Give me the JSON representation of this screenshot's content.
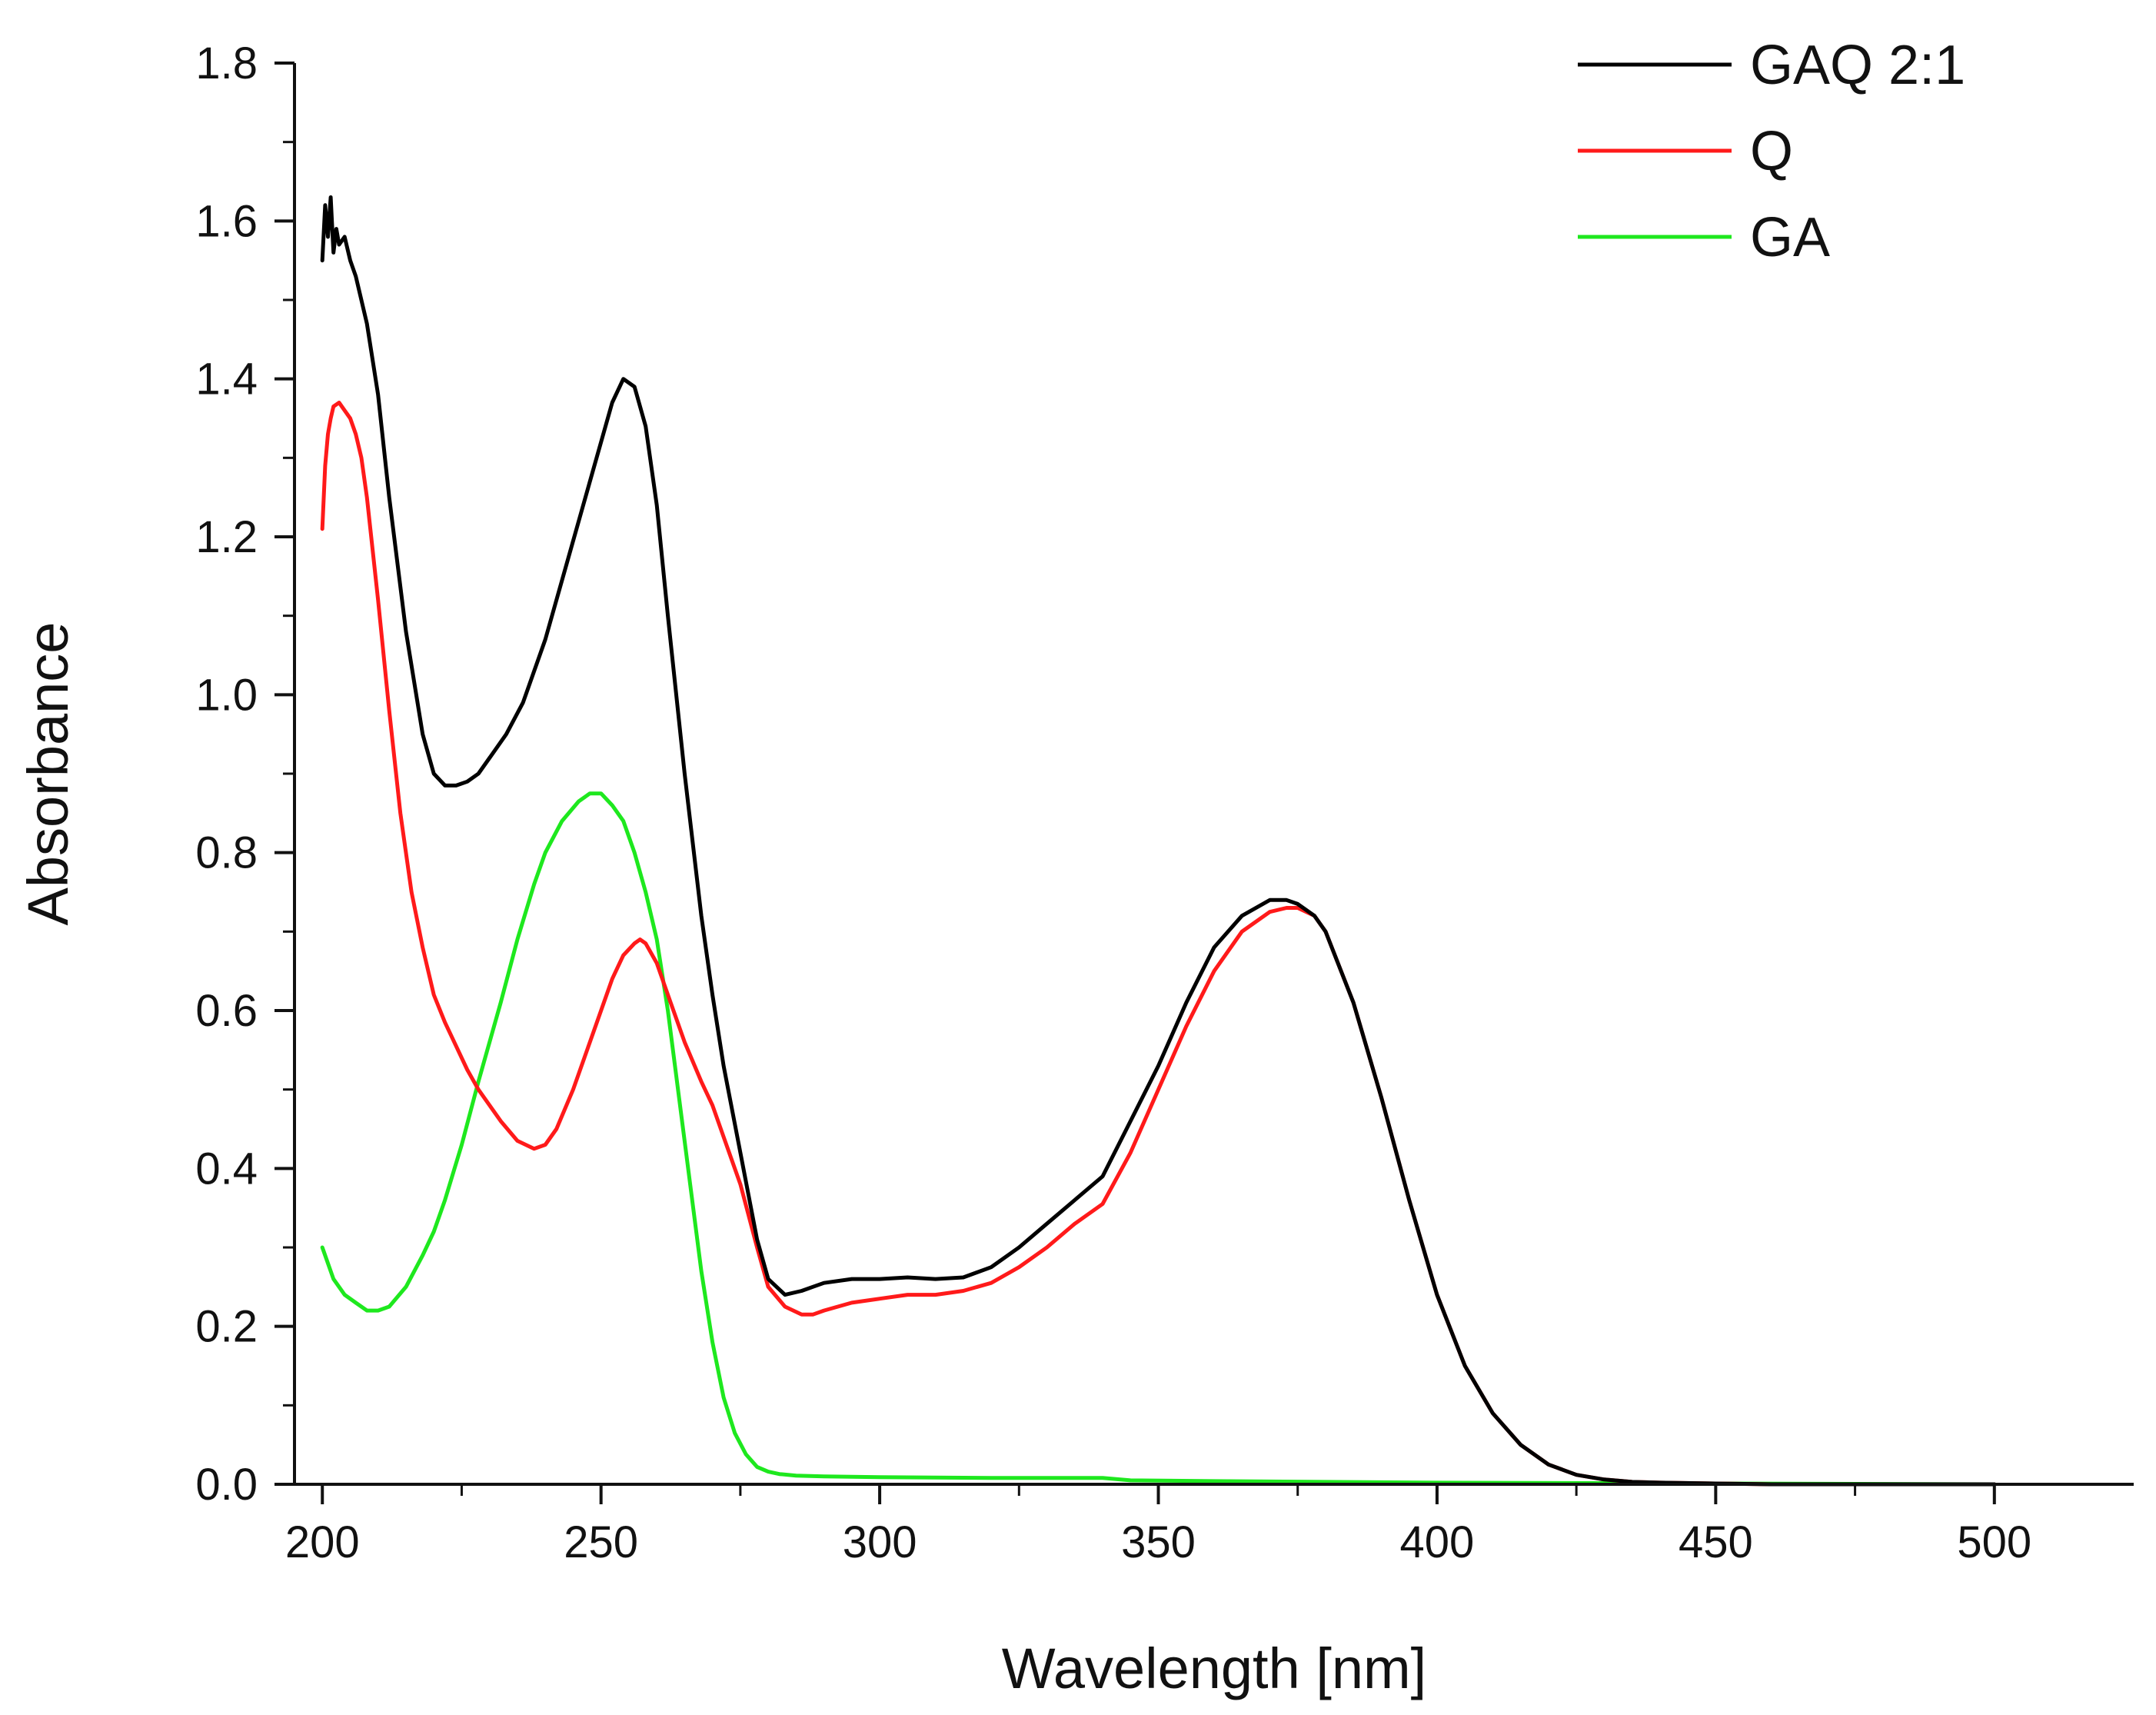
{
  "chart_data": {
    "type": "line",
    "title": "",
    "xlabel": "Wavelength [nm]",
    "ylabel": "Absorbance",
    "xlim": [
      195,
      525
    ],
    "ylim": [
      0,
      1.8
    ],
    "x_ticks": [
      200,
      250,
      300,
      350,
      400,
      450,
      500
    ],
    "x_tick_labels": [
      "200",
      "250",
      "300",
      "350",
      "400",
      "450",
      "500"
    ],
    "y_ticks": [
      0.0,
      0.2,
      0.4,
      0.6,
      0.8,
      1.0,
      1.2,
      1.4,
      1.6,
      1.8
    ],
    "y_tick_labels": [
      "0.0",
      "0.2",
      "0.4",
      "0.6",
      "0.8",
      "1.0",
      "1.2",
      "1.4",
      "1.6",
      "1.8"
    ],
    "grid": false,
    "legend_position": "top-right",
    "series": [
      {
        "name": "GAQ 2:1",
        "color": "#000000",
        "x": [
          200,
          200.5,
          201,
          201.5,
          202,
          202.5,
          203,
          204,
          205,
          206,
          208,
          210,
          212,
          215,
          218,
          220,
          222,
          224,
          226,
          228,
          230,
          233,
          236,
          240,
          244,
          248,
          250,
          252,
          254,
          256,
          258,
          260,
          262,
          265,
          268,
          270,
          272,
          275,
          278,
          280,
          283,
          286,
          288,
          290,
          295,
          300,
          305,
          310,
          315,
          320,
          325,
          330,
          335,
          340,
          345,
          350,
          355,
          360,
          365,
          370,
          373,
          375,
          378,
          380,
          385,
          390,
          395,
          400,
          405,
          410,
          415,
          420,
          425,
          430,
          435,
          440,
          450,
          460,
          480,
          500
        ],
        "y": [
          1.55,
          1.62,
          1.58,
          1.63,
          1.56,
          1.59,
          1.57,
          1.58,
          1.55,
          1.53,
          1.47,
          1.38,
          1.25,
          1.08,
          0.95,
          0.9,
          0.885,
          0.885,
          0.89,
          0.9,
          0.92,
          0.95,
          0.99,
          1.07,
          1.17,
          1.27,
          1.32,
          1.37,
          1.4,
          1.39,
          1.34,
          1.24,
          1.1,
          0.9,
          0.72,
          0.62,
          0.53,
          0.42,
          0.31,
          0.26,
          0.24,
          0.245,
          0.25,
          0.255,
          0.26,
          0.26,
          0.262,
          0.26,
          0.262,
          0.275,
          0.3,
          0.33,
          0.36,
          0.39,
          0.46,
          0.53,
          0.61,
          0.68,
          0.72,
          0.74,
          0.74,
          0.735,
          0.72,
          0.7,
          0.61,
          0.49,
          0.36,
          0.24,
          0.15,
          0.09,
          0.05,
          0.025,
          0.012,
          0.006,
          0.003,
          0.002,
          0.001,
          0.0,
          0.0,
          0.0
        ]
      },
      {
        "name": "Q",
        "color": "#ff1a1a",
        "x": [
          200,
          200.5,
          201,
          201.5,
          202,
          203,
          204,
          205,
          206,
          207,
          208,
          210,
          212,
          214,
          216,
          218,
          220,
          222,
          224,
          226,
          228,
          230,
          232,
          235,
          238,
          240,
          242,
          245,
          248,
          250,
          252,
          254,
          256,
          257,
          258,
          260,
          262,
          265,
          268,
          270,
          272,
          275,
          278,
          280,
          283,
          286,
          288,
          290,
          295,
          300,
          305,
          310,
          315,
          320,
          325,
          330,
          335,
          340,
          345,
          350,
          355,
          360,
          365,
          370,
          373,
          375,
          378,
          380,
          385,
          390,
          395,
          400,
          405,
          410,
          415,
          420,
          425,
          430,
          435,
          440,
          450,
          460,
          480,
          500
        ],
        "y": [
          1.21,
          1.29,
          1.33,
          1.35,
          1.365,
          1.37,
          1.36,
          1.35,
          1.33,
          1.3,
          1.25,
          1.12,
          0.98,
          0.85,
          0.75,
          0.68,
          0.62,
          0.585,
          0.555,
          0.525,
          0.5,
          0.48,
          0.46,
          0.435,
          0.425,
          0.43,
          0.45,
          0.5,
          0.56,
          0.6,
          0.64,
          0.67,
          0.685,
          0.69,
          0.685,
          0.66,
          0.62,
          0.56,
          0.51,
          0.48,
          0.44,
          0.38,
          0.3,
          0.25,
          0.225,
          0.215,
          0.215,
          0.22,
          0.23,
          0.235,
          0.24,
          0.24,
          0.245,
          0.255,
          0.275,
          0.3,
          0.33,
          0.355,
          0.42,
          0.5,
          0.58,
          0.65,
          0.7,
          0.725,
          0.73,
          0.73,
          0.72,
          0.7,
          0.61,
          0.49,
          0.36,
          0.24,
          0.15,
          0.09,
          0.05,
          0.025,
          0.012,
          0.006,
          0.003,
          0.002,
          0.001,
          0.0,
          0.0,
          0.0
        ]
      },
      {
        "name": "GA",
        "color": "#1ee81e",
        "x": [
          200,
          202,
          204,
          206,
          208,
          210,
          212,
          215,
          218,
          220,
          222,
          225,
          228,
          230,
          232,
          235,
          238,
          240,
          243,
          246,
          248,
          250,
          252,
          254,
          256,
          258,
          260,
          262,
          264,
          266,
          268,
          270,
          272,
          274,
          276,
          278,
          280,
          282,
          285,
          290,
          300,
          320,
          340,
          345,
          360,
          400,
          450,
          500
        ],
        "y": [
          0.3,
          0.26,
          0.24,
          0.23,
          0.22,
          0.22,
          0.225,
          0.25,
          0.29,
          0.32,
          0.36,
          0.43,
          0.51,
          0.56,
          0.61,
          0.69,
          0.76,
          0.8,
          0.84,
          0.865,
          0.875,
          0.875,
          0.86,
          0.84,
          0.8,
          0.75,
          0.69,
          0.6,
          0.49,
          0.38,
          0.27,
          0.18,
          0.11,
          0.065,
          0.038,
          0.022,
          0.016,
          0.013,
          0.011,
          0.01,
          0.009,
          0.008,
          0.008,
          0.005,
          0.004,
          0.002,
          0.001,
          0.0
        ]
      }
    ]
  }
}
